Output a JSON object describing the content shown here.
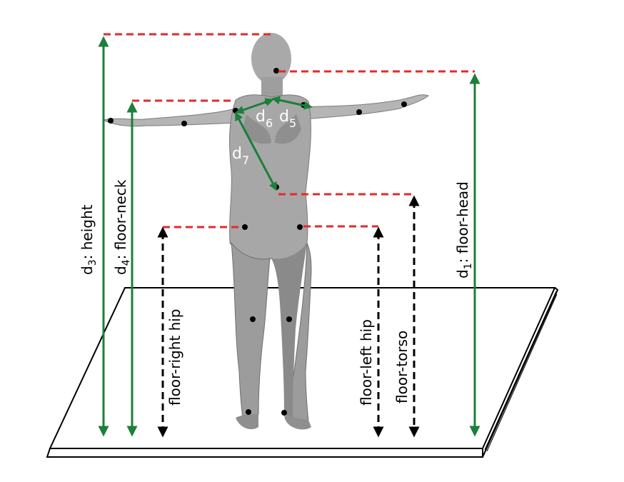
{
  "colors": {
    "red_dash": "#e32a2a",
    "green_arrow": "#1c7f3a",
    "black_arrow": "#000000",
    "skin_light": "#bdbdbd",
    "skin_mid": "#9b9b9b",
    "skin_dark": "#6e6e6e",
    "platform": "#ffffff"
  },
  "labels": {
    "height_main": "d",
    "height_sub": "3",
    "height_text": ": height",
    "floor_neck_main": "d",
    "floor_neck_sub": "4",
    "floor_neck_text": ": floor-neck",
    "floor_head_main": "d",
    "floor_head_sub": "1",
    "floor_head_text": ": floor-head",
    "floor_right_hip": "floor-right hip",
    "floor_left_hip": "floor-left hip",
    "floor_torso": "floor-torso",
    "d5_main": "d",
    "d5_sub": "5",
    "d6_main": "d",
    "d6_sub": "6",
    "d7_main": "d",
    "d7_sub": "7"
  },
  "icons": [
    "human-figure",
    "platform"
  ]
}
